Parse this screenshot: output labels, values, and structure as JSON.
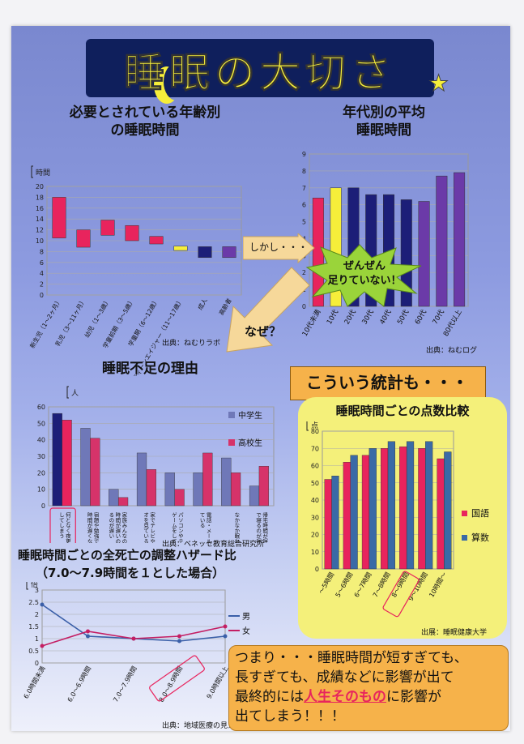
{
  "title": "睡眠の大切さ",
  "section1": {
    "heading_line1": "必要とされている年齢別",
    "heading_line2": "の睡眠時間",
    "unit": "時間",
    "source": "出典：ねむりラボ"
  },
  "section2": {
    "heading_line1": "年代別の平均",
    "heading_line2": "睡眠時間",
    "source": "出典：ねむログ"
  },
  "callouts": {
    "shikashi": "しかし・・・",
    "burst_line1": "ぜんぜん",
    "burst_line2": "足りていない！",
    "naze": "なぜ？",
    "kouiu": "こういう統計も・・・"
  },
  "section3": {
    "heading": "睡眠不足の理由",
    "unit": "人",
    "source": "出典：ベネッセ教育総合研究所"
  },
  "section4": {
    "heading": "睡眠時間ごとの点数比較",
    "unit": "点",
    "source": "出展：睡眠健康大学"
  },
  "section5": {
    "heading_line1": "睡眠時間ごとの全死亡の調整ハザード比",
    "heading_line2": "（7.0～7.9時間を１とした場合）",
    "unit": "倍",
    "source": "出典：地域医療の見え方"
  },
  "conclusion": {
    "line1": "つまり・・・睡眠時間が短すぎても、",
    "line2": "長すぎても、成績などに影響が出て",
    "line3_pre": "最終的には",
    "line3_emph": "人生そのもの",
    "line3_post": "に影響が",
    "line4": "出てしまう！！！"
  },
  "colors": {
    "poster_bg": "#8d9be0",
    "title_bg": "#0f1f5c",
    "title_text": "#f6ee3a",
    "pink": "#e8245d",
    "navy": "#1c1e78",
    "purple": "#6b3aa8",
    "orange": "#f6b24a",
    "yellow_panel": "#f4f07a",
    "burst": "#9ad43a",
    "arrow": "#f6d89a"
  },
  "chart_data": [
    {
      "type": "bar",
      "subtype": "floating-range",
      "categories": [
        "新生児（1～2ヶ月）",
        "乳児（3～11ヶ月）",
        "幼児（1～3歳）",
        "学童前期（3～5歳）",
        "学童期（6～12歳）",
        "ティーンエイジャー（11～17歳）",
        "成人",
        "高齢者"
      ],
      "ranges": [
        [
          10.5,
          18
        ],
        [
          8.8,
          12
        ],
        [
          11,
          13.8
        ],
        [
          10,
          12.8
        ],
        [
          9.4,
          10.8
        ],
        [
          8.2,
          9
        ],
        [
          6.9,
          8.9
        ],
        [
          6.9,
          8.9
        ]
      ],
      "colors": [
        "#e8245d",
        "#e8245d",
        "#e8245d",
        "#e8245d",
        "#e8245d",
        "#f6ee3a",
        "#1c1e78",
        "#6b3aa8"
      ],
      "ylim": [
        0,
        20
      ],
      "yticks": [
        0,
        2,
        4,
        6,
        8,
        10,
        12,
        14,
        16,
        18,
        20
      ],
      "ylabel": "時間"
    },
    {
      "type": "bar",
      "categories": [
        "10代未満",
        "10代",
        "20代",
        "30代",
        "40代",
        "50代",
        "60代",
        "70代",
        "80代以上"
      ],
      "values": [
        6.4,
        7.0,
        7.0,
        6.6,
        6.6,
        6.3,
        6.2,
        7.7,
        7.9
      ],
      "colors": [
        "#e8245d",
        "#f6ee3a",
        "#1c1e78",
        "#1c1e78",
        "#1c1e78",
        "#1c1e78",
        "#6b3aa8",
        "#6b3aa8",
        "#6b3aa8"
      ],
      "ylim": [
        0,
        9
      ],
      "yticks": [
        0,
        1,
        2,
        3,
        4,
        5,
        6,
        7,
        8,
        9
      ]
    },
    {
      "type": "bar",
      "categories": [
        "何となく夜更かししてしまう",
        "宿題や勉強で寝る時間が遅くなる",
        "家族みんなの寝る時間が遅いので寝るのが遅い",
        "家でテレビやビデオを見ている",
        "パソコンやテレビゲームをしている",
        "電話・メールをしている",
        "なかなか眠れない",
        "帰宅時間が遅いので寝るのが遅い"
      ],
      "series": [
        {
          "name": "中学生",
          "values": [
            56,
            47,
            10,
            32,
            20,
            20,
            29,
            12
          ]
        },
        {
          "name": "高校生",
          "values": [
            52,
            41,
            5,
            22,
            10,
            32,
            20,
            24
          ]
        }
      ],
      "ylim": [
        0,
        60
      ],
      "yticks": [
        0,
        10,
        20,
        30,
        40,
        50,
        60
      ],
      "ylabel": "人"
    },
    {
      "type": "bar",
      "categories": [
        "～5時間",
        "5～6時間",
        "6～7時間",
        "7～8時間",
        "8～9時間",
        "9～10時間",
        "10時間～"
      ],
      "series": [
        {
          "name": "国語",
          "values": [
            52,
            62,
            66,
            70,
            71,
            70,
            64
          ]
        },
        {
          "name": "算数",
          "values": [
            54,
            66,
            70,
            74,
            74,
            74,
            68
          ]
        }
      ],
      "ylim": [
        0,
        80
      ],
      "yticks": [
        0,
        10,
        20,
        30,
        40,
        50,
        60,
        70,
        80
      ],
      "ylabel": "点"
    },
    {
      "type": "line",
      "categories": [
        "6.0時間未満",
        "6.0～6.9時間",
        "7.0～7.9時間",
        "8.0～8.9時間",
        "9.0時間以上"
      ],
      "series": [
        {
          "name": "男",
          "values": [
            2.4,
            1.1,
            1.0,
            0.9,
            1.1
          ]
        },
        {
          "name": "女",
          "values": [
            0.7,
            1.3,
            1.0,
            1.1,
            1.5
          ]
        }
      ],
      "ylim": [
        0,
        3
      ],
      "yticks": [
        0,
        0.5,
        1,
        1.5,
        2,
        2.5,
        3
      ],
      "ylabel": "倍"
    }
  ]
}
